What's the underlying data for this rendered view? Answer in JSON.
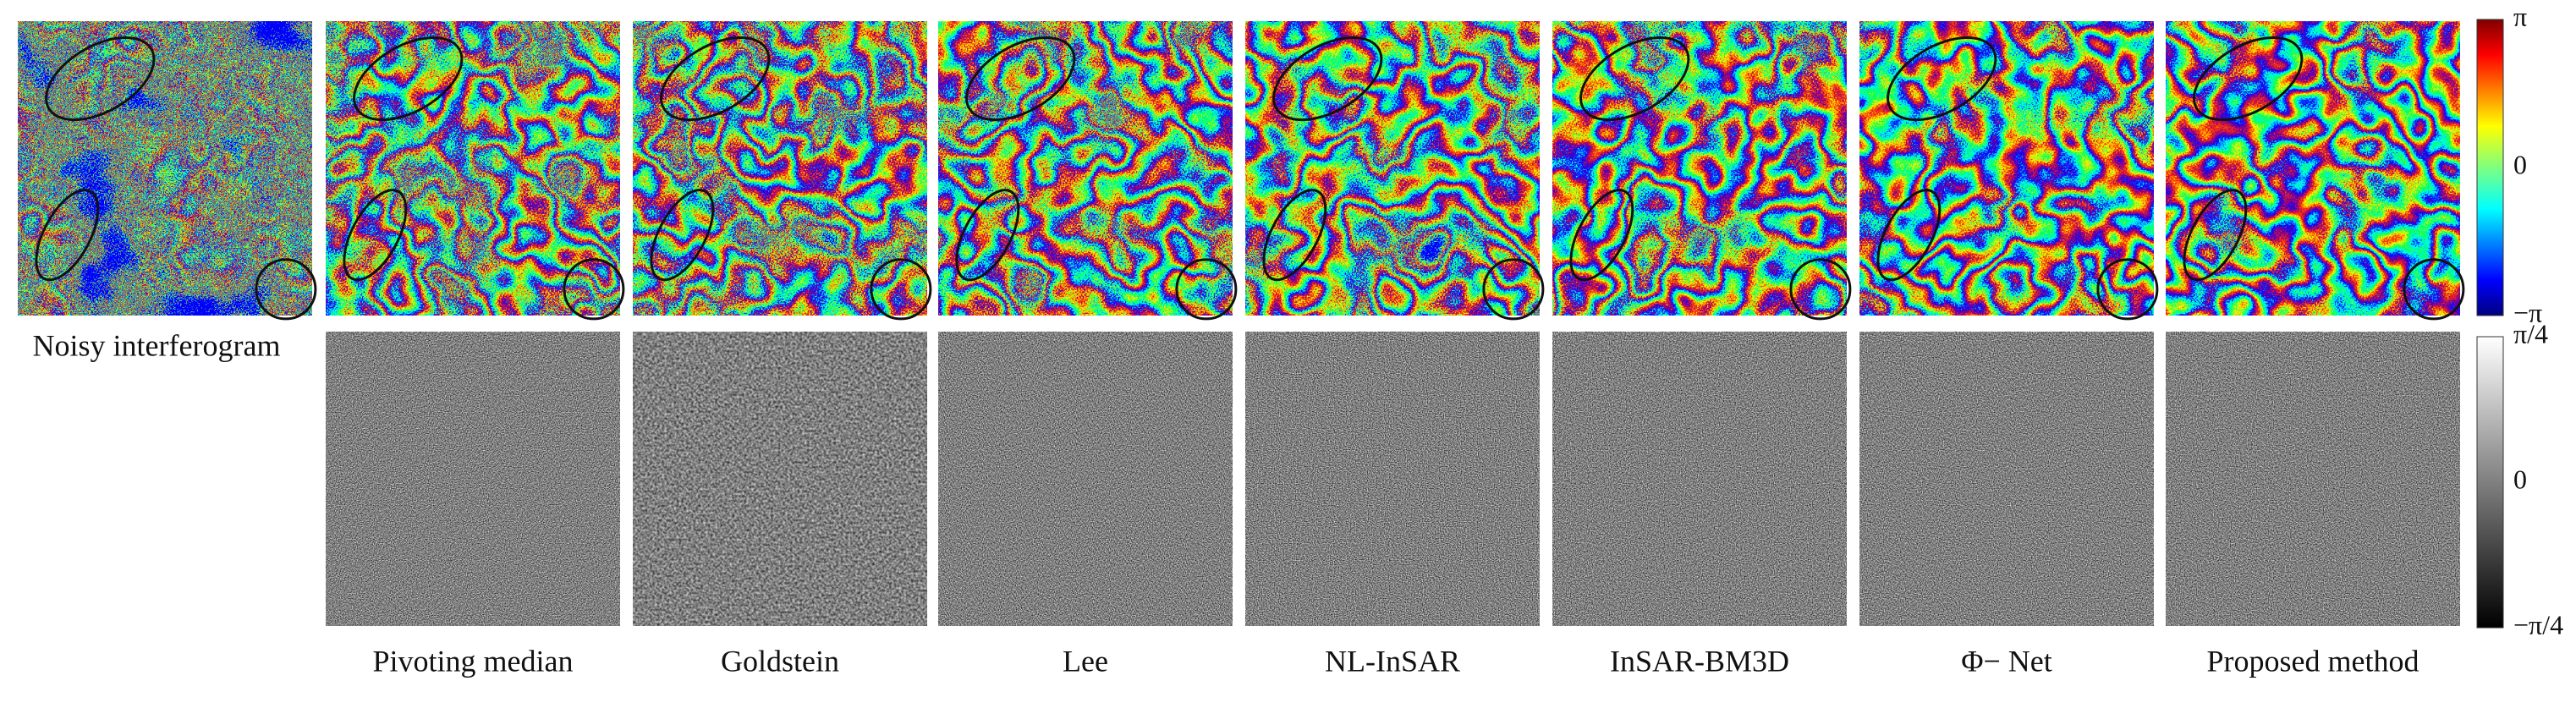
{
  "noisy_label": "Noisy interferogram",
  "methods": [
    "Pivoting median",
    "Goldstein",
    "Lee",
    "NL-InSAR",
    "InSAR-BM3D",
    "Φ− Net",
    "Proposed method"
  ],
  "phase_colorbar": {
    "ticks": [
      "π",
      "0",
      "−π"
    ]
  },
  "residual_colorbar": {
    "ticks": [
      "π/4",
      "0",
      "−π/4"
    ]
  }
}
